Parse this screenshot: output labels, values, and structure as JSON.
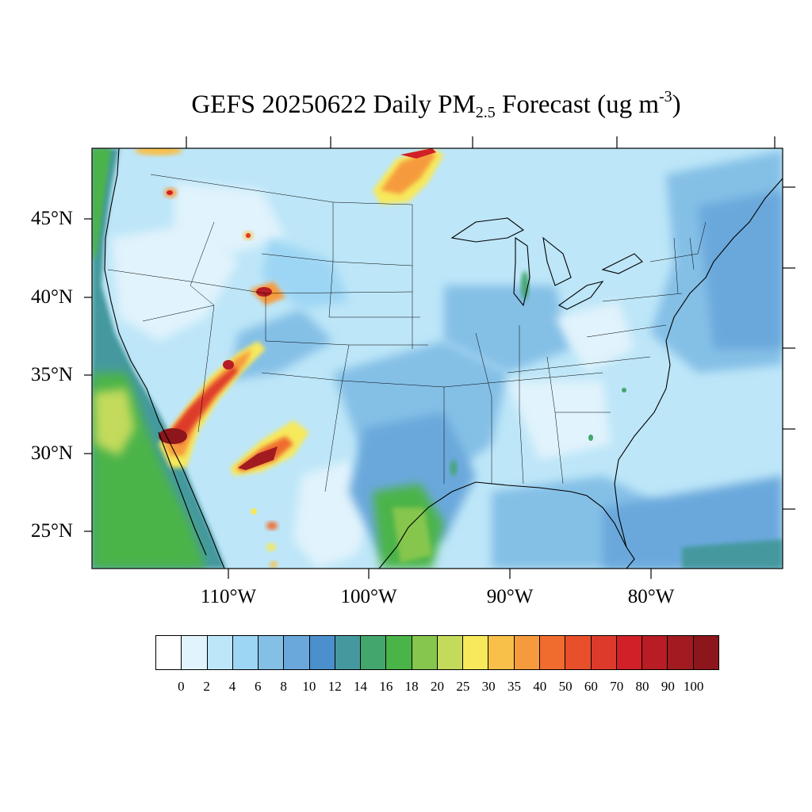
{
  "title": {
    "prefix": "GEFS 20250622 Daily PM",
    "subscript": "2.5",
    "middle": " Forecast (ug m",
    "superscript": "-3",
    "suffix": ")"
  },
  "map": {
    "projection": "lambert-conformal",
    "region": "CONUS",
    "lat_labels": [
      "45°N",
      "40°N",
      "35°N",
      "30°N",
      "25°N"
    ],
    "lon_labels": [
      "110°W",
      "100°W",
      "90°W",
      "80°W"
    ],
    "background_level": "4-6",
    "ocean_level_west": "12-14",
    "ocean_level_gulf": "10-12",
    "ocean_level_atlantic": "10-12",
    "smoke_plumes": [
      {
        "area": "southern Arizona / New Mexico border",
        "max_level": ">100"
      },
      {
        "area": "Arizona to Utah corridor",
        "max_level": "50-60"
      },
      {
        "area": "Colorado / Wyoming",
        "max_level": "80-90"
      },
      {
        "area": "Manitoba / Minnesota border",
        "max_level": "70-80"
      },
      {
        "area": "Gulf of California",
        "max_level": ">100"
      }
    ]
  },
  "colorbar": {
    "labels": [
      "0",
      "2",
      "4",
      "6",
      "8",
      "10",
      "12",
      "14",
      "16",
      "18",
      "20",
      "25",
      "30",
      "35",
      "40",
      "50",
      "60",
      "70",
      "80",
      "90",
      "100"
    ],
    "colors": [
      "#ffffff",
      "#e1f3fc",
      "#bde6f8",
      "#9dd6f4",
      "#84bfe6",
      "#6aa8dc",
      "#4b8fcd",
      "#45999e",
      "#42a66d",
      "#4bb448",
      "#86c64d",
      "#c3da5b",
      "#f7e95b",
      "#f8c049",
      "#f69b3d",
      "#f06c2e",
      "#e8502c",
      "#de3a2b",
      "#d12027",
      "#b81c24",
      "#a11b20",
      "#8c161c"
    ]
  }
}
